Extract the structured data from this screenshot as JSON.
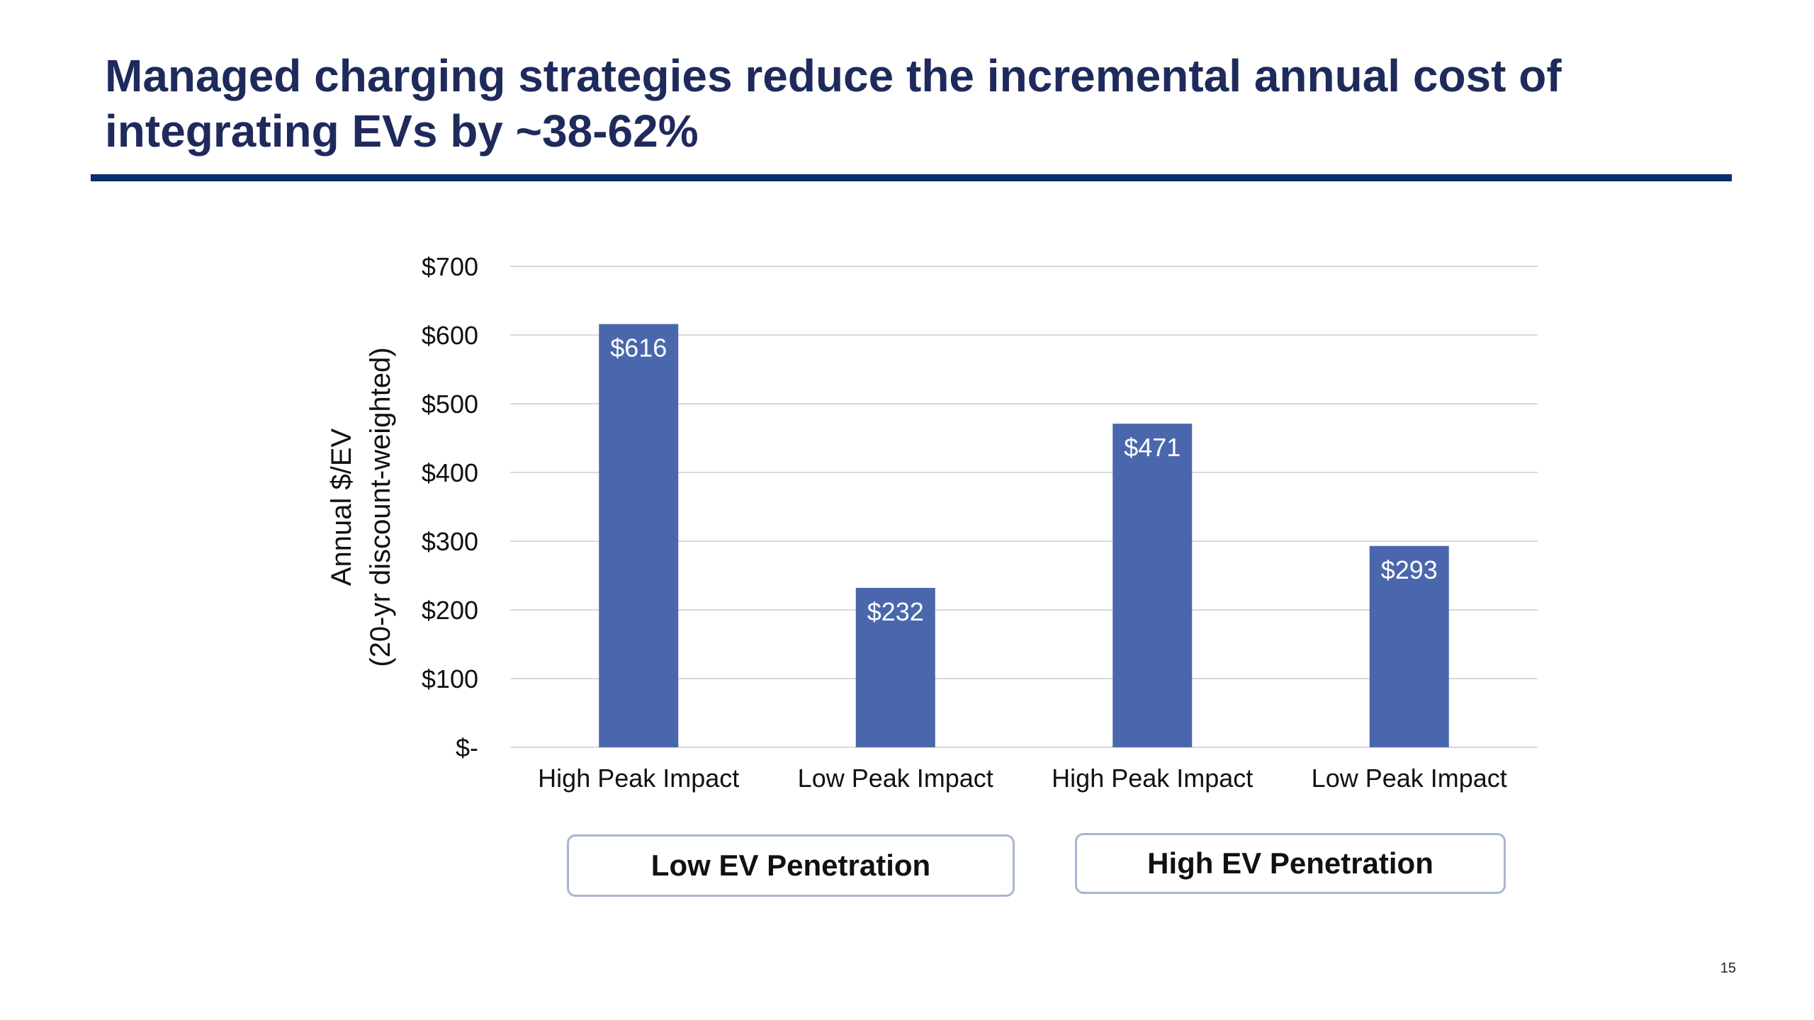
{
  "slide": {
    "title": "Managed charging strategies reduce the incremental annual cost of integrating EVs by ~38-62%",
    "page_number": "15"
  },
  "colors": {
    "title": "#1f2a5c",
    "rule": "#0c2d6b",
    "bar": "#4a67ad",
    "grid": "#d9d9d9",
    "bar_label": "#ffffff"
  },
  "chart_data": {
    "type": "bar",
    "categories": [
      "High Peak Impact",
      "Low Peak Impact",
      "High Peak Impact",
      "Low Peak Impact"
    ],
    "values": [
      616,
      232,
      471,
      293
    ],
    "data_labels": [
      "$616",
      "$232",
      "$471",
      "$293"
    ],
    "ylabel": [
      "Annual $/EV",
      "(20-yr discount-weighted)"
    ],
    "ylim": [
      0,
      700
    ],
    "yticks": [
      0,
      100,
      200,
      300,
      400,
      500,
      600,
      700
    ],
    "ytick_labels": [
      "$-",
      "$100",
      "$200",
      "$300",
      "$400",
      "$500",
      "$600",
      "$700"
    ],
    "grid": true,
    "category_groups": [
      {
        "label": "Low EV Penetration",
        "categories": [
          0,
          1
        ]
      },
      {
        "label": "High EV Penetration",
        "categories": [
          2,
          3
        ]
      }
    ]
  }
}
